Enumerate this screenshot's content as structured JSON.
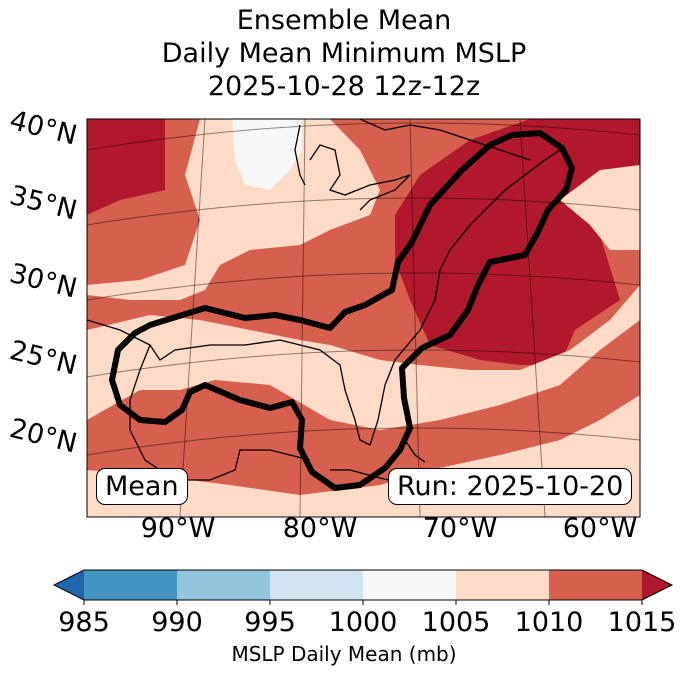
{
  "chart_data": {
    "type": "heatmap",
    "title_lines": [
      "Ensemble Mean",
      "Daily Mean Minimum MSLP",
      "2025-10-28 12z-12z"
    ],
    "latitude_ticks": [
      "40°N",
      "35°N",
      "30°N",
      "25°N",
      "20°N"
    ],
    "longitude_ticks": [
      "90°W",
      "80°W",
      "70°W",
      "60°W"
    ],
    "region": "Gulf of Mexico / US East Coast",
    "colorbar": {
      "label": "MSLP Daily Mean (mb)",
      "ticks": [
        "985",
        "990",
        "995",
        "1000",
        "1005",
        "1010",
        "1015"
      ],
      "bin_edges": [
        985,
        990,
        995,
        1000,
        1005,
        1010,
        1015
      ],
      "extend": "both",
      "colors": {
        "under": "#2166ac",
        "985-990": "#4393c3",
        "990-995": "#92c5de",
        "995-1000": "#d1e5f0",
        "1000-1005": "#f7f7f7",
        "1005-1010": "#fddbc7",
        "1010-1015": "#d6604d",
        "over": "#b2182b"
      }
    },
    "field_summary": {
      "min_value_shown": "1000-1005 mb over Great Lakes",
      "max_value_shown": ">1015 mb over Northeast US and Atlantic",
      "highlighted_region": "thick black outline around Gulf coast and US East Coast"
    },
    "annotations": {
      "left_box": "Mean",
      "right_box": "Run: 2025-10-20"
    }
  }
}
